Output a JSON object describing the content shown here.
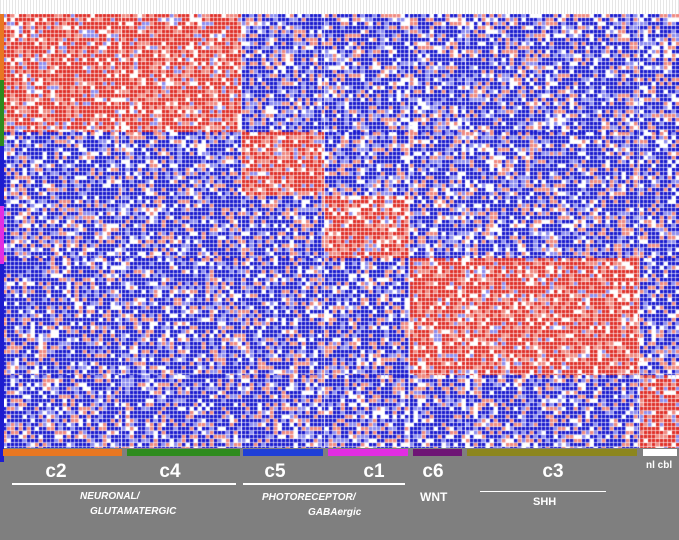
{
  "clusters": [
    {
      "id": "c2",
      "label": "c2",
      "color": "#e87722"
    },
    {
      "id": "c4",
      "label": "c4",
      "color": "#2e8b1e"
    },
    {
      "id": "c5",
      "label": "c5",
      "color": "#1f3fd6"
    },
    {
      "id": "c1",
      "label": "c1",
      "color": "#e22de2"
    },
    {
      "id": "c6",
      "label": "c6",
      "color": "#6e1575"
    },
    {
      "id": "c3",
      "label": "c3",
      "color": "#8c861e"
    },
    {
      "id": "nl",
      "label": "nl cbl",
      "color": "#ffffff"
    }
  ],
  "groups": {
    "neuronal": {
      "line1": "NEURONAL/",
      "line2": "GLUTAMATERGIC"
    },
    "photoreceptor": {
      "line1": "PHOTORECEPTOR/",
      "line2": "GABAergic"
    },
    "wnt": "WNT",
    "shh": "SHH"
  },
  "colors": {
    "high": "#e0302a",
    "mid": "#ffffff",
    "low": "#1c1ccf",
    "background": "#7f7f7f"
  }
}
